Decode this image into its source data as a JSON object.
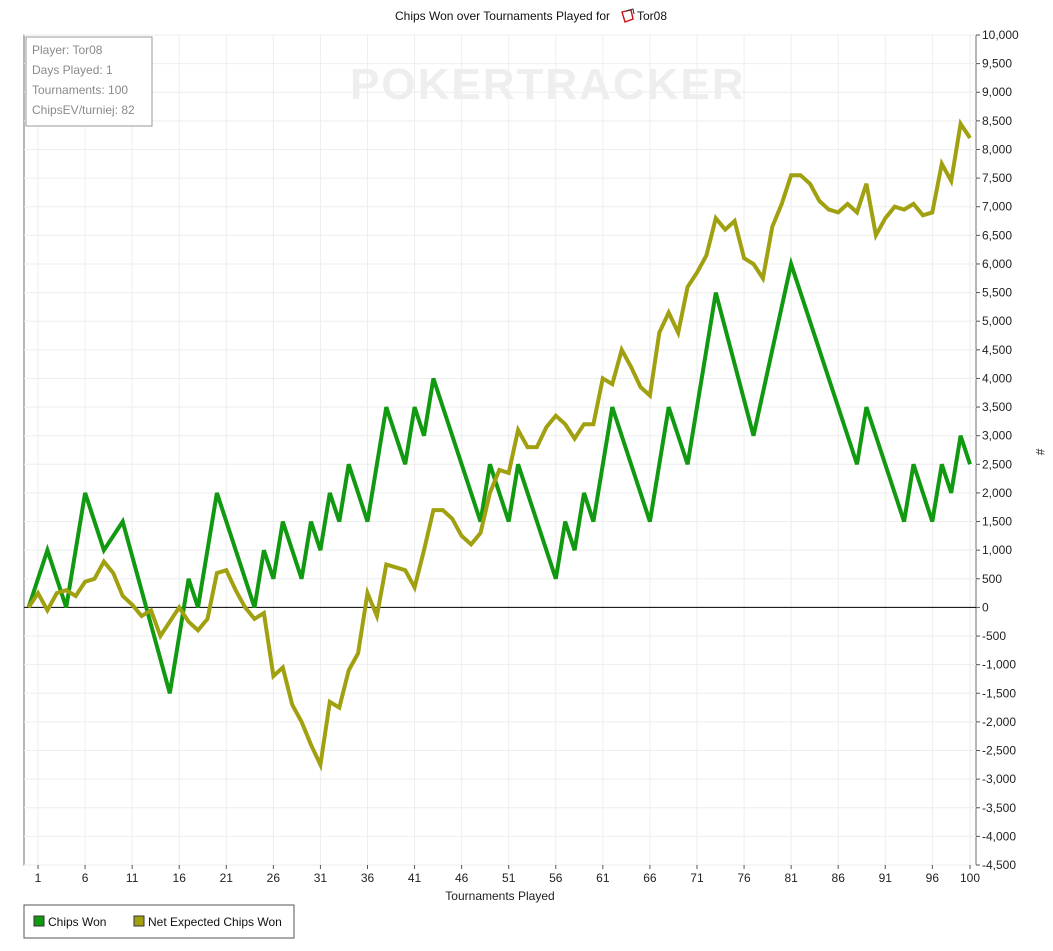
{
  "chart_data": {
    "type": "line",
    "title_prefix": "Chips Won over Tournaments Played for",
    "title_player": "Tor08",
    "xlabel": "Tournaments Played",
    "ylabel": "#",
    "xlim": [
      1,
      100
    ],
    "ylim": [
      -4500,
      10000
    ],
    "x_ticks": [
      "1",
      "6",
      "11",
      "16",
      "21",
      "26",
      "31",
      "36",
      "41",
      "46",
      "51",
      "56",
      "61",
      "66",
      "71",
      "76",
      "81",
      "86",
      "91",
      "96",
      "100"
    ],
    "y_ticks": [
      "10,000",
      "9,500",
      "9,000",
      "8,500",
      "8,000",
      "7,500",
      "7,000",
      "6,500",
      "6,000",
      "5,500",
      "5,000",
      "4,500",
      "4,000",
      "3,500",
      "3,000",
      "2,500",
      "2,000",
      "1,500",
      "1,000",
      "500",
      "0",
      "-500",
      "-1,000",
      "-1,500",
      "-2,000",
      "-2,500",
      "-3,000",
      "-3,500",
      "-4,000",
      "-4,500"
    ],
    "grid": true,
    "legend_position": "bottom-left",
    "watermark": "POKERTRACKER",
    "info_box": {
      "lines": [
        "Player: Tor08",
        "Days Played: 1",
        "Tournaments: 100",
        "ChipsEV/turniej: 82"
      ]
    },
    "series": [
      {
        "name": "Chips Won",
        "color": "#119911",
        "x": [
          0,
          2,
          4,
          6,
          8,
          10,
          15,
          17,
          18,
          20,
          24,
          25,
          26,
          27,
          28,
          29,
          30,
          31,
          32,
          33,
          34,
          35,
          36,
          38,
          40,
          41,
          42,
          43,
          48,
          49,
          50,
          51,
          52,
          56,
          57,
          58,
          59,
          60,
          62,
          66,
          68,
          70,
          73,
          77,
          81,
          88,
          89,
          93,
          94,
          96,
          97,
          98,
          99,
          100
        ],
        "values": [
          0,
          1000,
          0,
          2000,
          1000,
          1500,
          -1500,
          500,
          0,
          2000,
          0,
          1000,
          500,
          1500,
          1000,
          500,
          1500,
          1000,
          2000,
          1500,
          2500,
          2000,
          1500,
          3500,
          2500,
          3500,
          3000,
          4000,
          1500,
          2500,
          2000,
          1500,
          2500,
          500,
          1500,
          1000,
          2000,
          1500,
          3500,
          1500,
          3500,
          2500,
          5500,
          3000,
          6000,
          2500,
          3500,
          1500,
          2500,
          1500,
          2500,
          2000,
          3000,
          2500
        ]
      },
      {
        "name": "Net Expected Chips Won",
        "color": "#a0a010",
        "x": [
          0,
          1,
          2,
          3,
          4,
          5,
          6,
          7,
          8,
          9,
          10,
          11,
          12,
          13,
          14,
          15,
          16,
          17,
          18,
          19,
          20,
          21,
          22,
          23,
          24,
          25,
          26,
          27,
          28,
          29,
          30,
          31,
          32,
          33,
          34,
          35,
          36,
          37,
          38,
          39,
          40,
          41,
          42,
          43,
          44,
          45,
          46,
          47,
          48,
          49,
          50,
          51,
          52,
          53,
          54,
          55,
          56,
          57,
          58,
          59,
          60,
          61,
          62,
          63,
          64,
          65,
          66,
          67,
          68,
          69,
          70,
          71,
          72,
          73,
          74,
          75,
          76,
          77,
          78,
          79,
          80,
          81,
          82,
          83,
          84,
          85,
          86,
          87,
          88,
          89,
          90,
          91,
          92,
          93,
          94,
          95,
          96,
          97,
          98,
          99,
          100
        ],
        "values": [
          0,
          250,
          -50,
          250,
          300,
          200,
          450,
          500,
          800,
          600,
          200,
          50,
          -150,
          -50,
          -500,
          -250,
          0,
          -250,
          -400,
          -200,
          600,
          650,
          300,
          0,
          -200,
          -100,
          -1200,
          -1050,
          -1700,
          -2000,
          -2400,
          -2750,
          -1650,
          -1750,
          -1100,
          -800,
          250,
          -150,
          750,
          700,
          650,
          350,
          1000,
          1700,
          1700,
          1550,
          1250,
          1100,
          1300,
          2000,
          2400,
          2350,
          3100,
          2800,
          2800,
          3150,
          3350,
          3200,
          2950,
          3200,
          3200,
          4000,
          3900,
          4500,
          4200,
          3850,
          3700,
          4800,
          5150,
          4800,
          5600,
          5850,
          6150,
          6800,
          6600,
          6750,
          6100,
          6000,
          5750,
          6650,
          7050,
          7550,
          7550,
          7400,
          7100,
          6950,
          6900,
          7050,
          6900,
          7400,
          6500,
          6800,
          7000,
          6950,
          7050,
          6850,
          6900,
          7750,
          7450,
          8450,
          8200
        ]
      }
    ]
  }
}
